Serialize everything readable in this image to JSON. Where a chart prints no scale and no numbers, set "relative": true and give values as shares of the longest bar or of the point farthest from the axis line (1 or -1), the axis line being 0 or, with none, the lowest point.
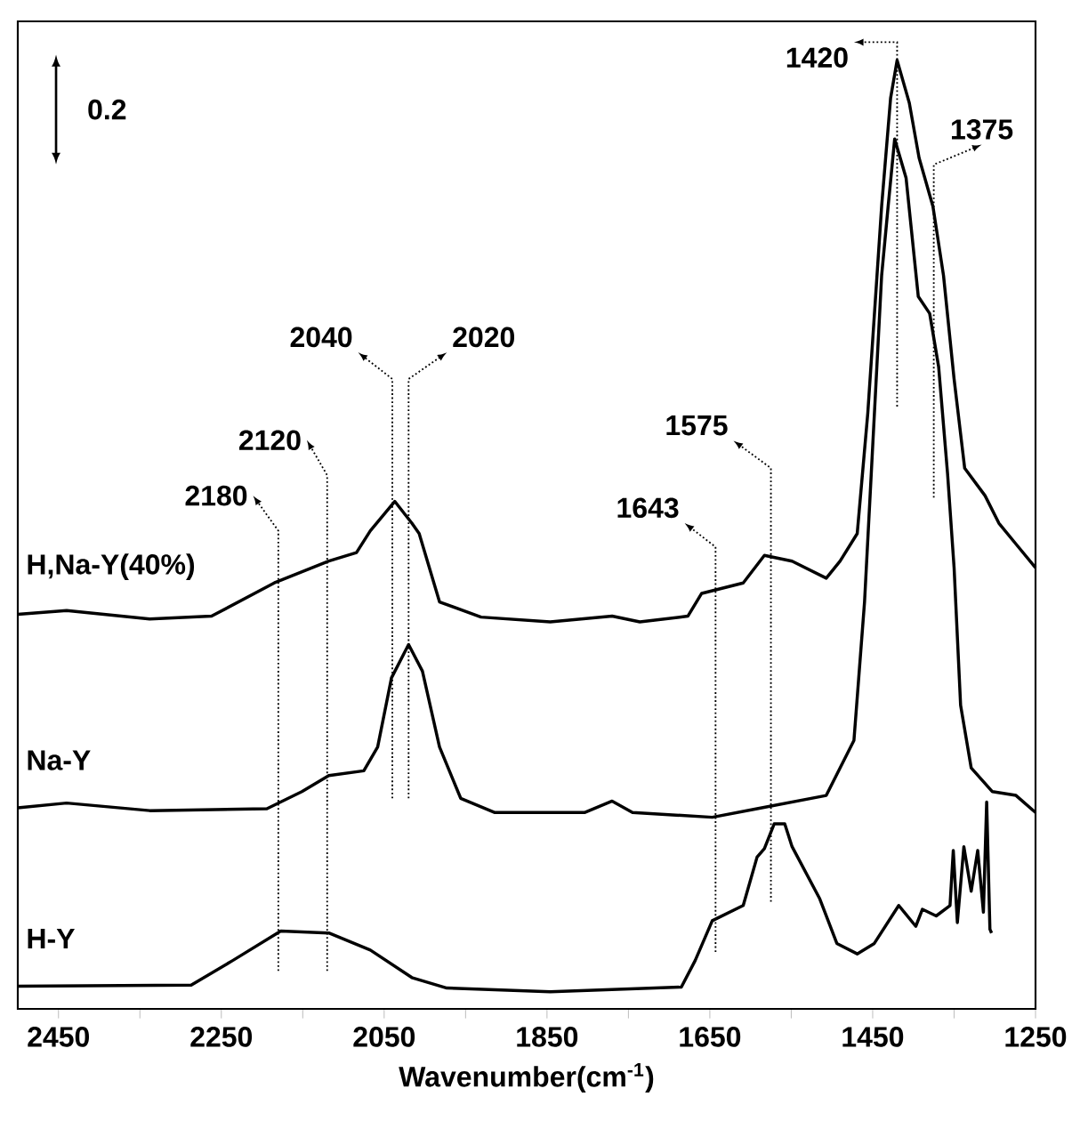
{
  "chart_data": {
    "type": "line",
    "relative": true,
    "xlabel": "Wavenumber(cm$^{-1}$)",
    "xlim": [
      2500,
      1250
    ],
    "xticks": [
      2450,
      {
        "value": 2350,
        "label": null
      },
      2250,
      {
        "value": 2150,
        "label": null
      },
      2050,
      {
        "value": 1950,
        "label": null
      },
      1850,
      {
        "value": 1750,
        "label": null
      },
      1650,
      {
        "value": 1550,
        "label": null
      },
      1450,
      {
        "value": 1350,
        "label": null
      },
      1250
    ],
    "series": [
      {
        "name": "H,Na-Y(40%)",
        "color": "#000000",
        "x": [
          2500,
          2440,
          2338,
          2262,
          2185,
          2118,
          2084,
          2067,
          2037,
          2016,
          2007,
          1982,
          1931,
          1846,
          1770,
          1736,
          1677,
          1660,
          1609,
          1583,
          1549,
          1507,
          1490,
          1469,
          1456,
          1439,
          1428,
          1420,
          1405,
          1393,
          1376,
          1363,
          1350,
          1337,
          1312,
          1295,
          1274,
          1250
        ],
        "values": [
          0.416,
          0.42,
          0.411,
          0.414,
          0.449,
          0.472,
          0.481,
          0.504,
          0.535,
          0.512,
          0.501,
          0.429,
          0.413,
          0.408,
          0.414,
          0.408,
          0.414,
          0.438,
          0.449,
          0.478,
          0.472,
          0.454,
          0.472,
          0.501,
          0.628,
          0.846,
          0.96,
          1.0,
          0.955,
          0.897,
          0.846,
          0.773,
          0.664,
          0.57,
          0.541,
          0.512,
          0.49,
          0.465
        ]
      },
      {
        "name": "Na-Y",
        "color": "#000000",
        "x": [
          2500,
          2440,
          2338,
          2194,
          2151,
          2118,
          2075,
          2058,
          2041,
          2020,
          2003,
          1982,
          1956,
          1914,
          1804,
          1770,
          1745,
          1647,
          1592,
          1507,
          1473,
          1460,
          1439,
          1431,
          1423,
          1409,
          1394,
          1380,
          1369,
          1358,
          1350,
          1342,
          1329,
          1303,
          1274,
          1250
        ],
        "values": [
          0.212,
          0.217,
          0.209,
          0.211,
          0.229,
          0.246,
          0.251,
          0.276,
          0.349,
          0.384,
          0.356,
          0.276,
          0.222,
          0.207,
          0.207,
          0.219,
          0.207,
          0.202,
          0.211,
          0.225,
          0.283,
          0.429,
          0.773,
          0.846,
          0.917,
          0.876,
          0.751,
          0.733,
          0.677,
          0.564,
          0.465,
          0.32,
          0.254,
          0.229,
          0.225,
          0.207
        ]
      },
      {
        "name": "H-Y",
        "color": "#000000",
        "x": [
          2500,
          2287,
          2236,
          2177,
          2118,
          2067,
          2016,
          1973,
          1846,
          1685,
          1668,
          1647,
          1609,
          1592,
          1583,
          1571,
          1558,
          1549,
          1515,
          1494,
          1469,
          1448,
          1418,
          1397,
          1389,
          1372,
          1355,
          1351,
          1346,
          1338,
          1329,
          1321,
          1314,
          1310,
          1306,
          1304
        ],
        "values": [
          0.024,
          0.025,
          0.051,
          0.082,
          0.08,
          0.062,
          0.033,
          0.022,
          0.018,
          0.023,
          0.051,
          0.093,
          0.109,
          0.16,
          0.169,
          0.195,
          0.195,
          0.171,
          0.116,
          0.069,
          0.058,
          0.069,
          0.109,
          0.087,
          0.105,
          0.098,
          0.109,
          0.167,
          0.091,
          0.171,
          0.124,
          0.167,
          0.102,
          0.218,
          0.084,
          0.08
        ]
      }
    ],
    "annotations": [
      "0.2",
      "2180",
      "2120",
      "2040",
      "2020",
      "1643",
      "1575",
      "1420",
      "1375"
    ]
  }
}
